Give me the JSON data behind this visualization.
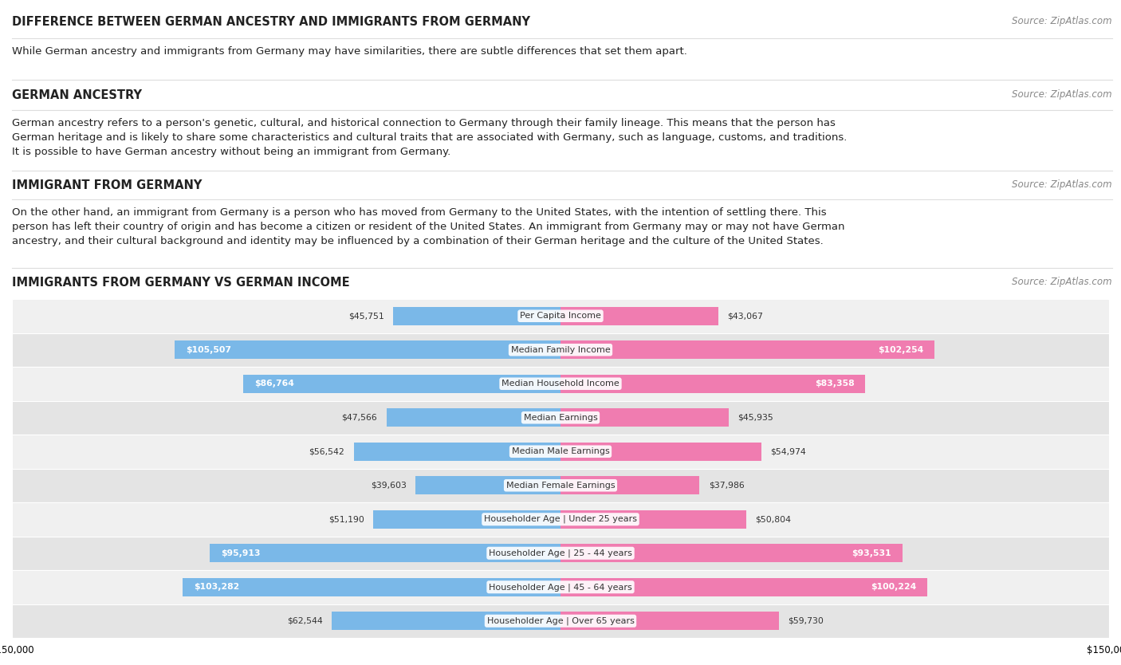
{
  "title_main": "DIFFERENCE BETWEEN GERMAN ANCESTRY AND IMMIGRANTS FROM GERMANY",
  "source_main": "Source: ZipAtlas.com",
  "intro_text": "While German ancestry and immigrants from Germany may have similarities, there are subtle differences that set them apart.",
  "section1_title": "GERMAN ANCESTRY",
  "section1_text": "German ancestry refers to a person's genetic, cultural, and historical connection to Germany through their family lineage. This means that the person has German heritage and is likely to share some characteristics and cultural traits that are associated with Germany, such as language, customs, and traditions. It is possible to have German ancestry without being an immigrant from Germany.",
  "section2_title": "IMMIGRANT FROM GERMANY",
  "section2_text": "On the other hand, an immigrant from Germany is a person who has moved from Germany to the United States, with the intention of settling there. This person has left their country of origin and has become a citizen or resident of the United States. An immigrant from Germany may or may not have German ancestry, and their cultural background and identity may be influenced by a combination of their German heritage and the culture of the United States.",
  "chart_title": "IMMIGRANTS FROM GERMANY VS GERMAN INCOME",
  "chart_source": "Source: ZipAtlas.com",
  "source_text": "Source: ZipAtlas.com",
  "categories": [
    "Per Capita Income",
    "Median Family Income",
    "Median Household Income",
    "Median Earnings",
    "Median Male Earnings",
    "Median Female Earnings",
    "Householder Age | Under 25 years",
    "Householder Age | 25 - 44 years",
    "Householder Age | 45 - 64 years",
    "Householder Age | Over 65 years"
  ],
  "immigrants_values": [
    45751,
    105507,
    86764,
    47566,
    56542,
    39603,
    51190,
    95913,
    103282,
    62544
  ],
  "german_values": [
    43067,
    102254,
    83358,
    45935,
    54974,
    37986,
    50804,
    93531,
    100224,
    59730
  ],
  "immigrants_color": "#7ab8e8",
  "german_color": "#f07cb0",
  "max_value": 150000,
  "row_bg_light": "#f0f0f0",
  "row_bg_dark": "#e4e4e4",
  "bar_height": 0.55,
  "high_value_threshold": 80000
}
